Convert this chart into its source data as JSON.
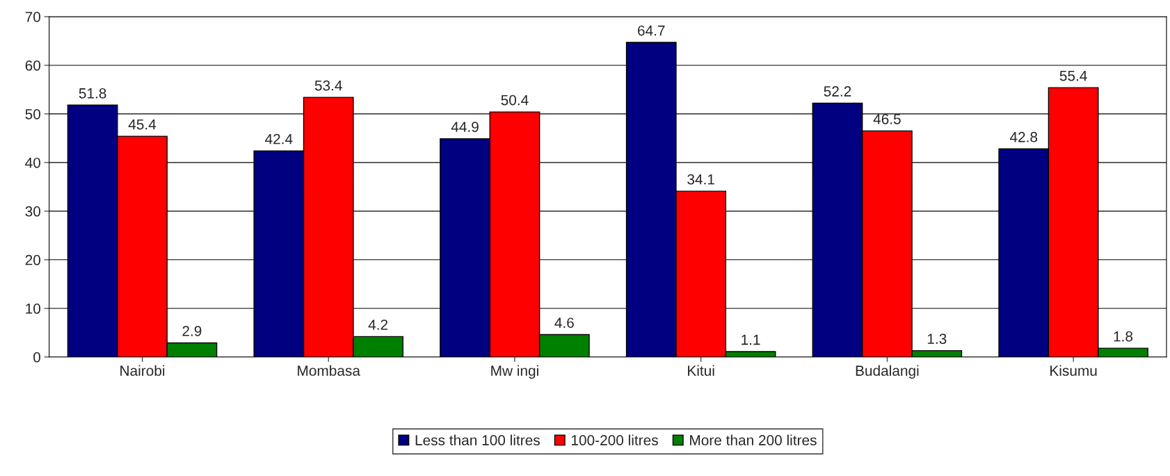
{
  "chart_data": {
    "type": "bar",
    "categories": [
      "Nairobi",
      "Mombasa",
      "Mw ingi",
      "Kitui",
      "Budalangi",
      "Kisumu"
    ],
    "series": [
      {
        "name": "Less than 100 litres",
        "color": "#000080",
        "values": [
          51.8,
          42.4,
          44.9,
          64.7,
          52.2,
          42.8
        ]
      },
      {
        "name": "100-200 litres",
        "color": "#ff0000",
        "values": [
          45.4,
          53.4,
          50.4,
          34.1,
          46.5,
          55.4
        ]
      },
      {
        "name": "More than 200 litres",
        "color": "#008000",
        "values": [
          2.9,
          4.2,
          4.6,
          1.1,
          1.3,
          1.8
        ]
      }
    ],
    "ylim": [
      0,
      70
    ],
    "yticks": [
      0,
      10,
      20,
      30,
      40,
      50,
      60,
      70
    ],
    "grid": "y",
    "legend": "bottom",
    "data_labels": true
  }
}
